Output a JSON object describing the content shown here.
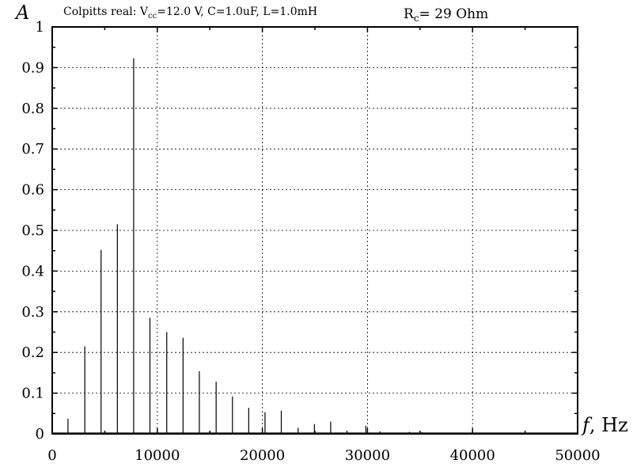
{
  "chart_data": {
    "type": "line",
    "title": {
      "prefix": "Colpitts real: V",
      "sub": "cc",
      "suffix": "=12.0 V, C=1.0uF, L=1.0mH"
    },
    "rc_label": {
      "prefix": "R",
      "sub": "c",
      "suffix": "=    29 Ohm"
    },
    "ylabel": "A",
    "xlabel": {
      "var": "f",
      "unit": ", Hz"
    },
    "xlim": [
      0,
      50000
    ],
    "ylim": [
      0,
      1
    ],
    "grid": true,
    "x_ticks": [
      0,
      10000,
      20000,
      30000,
      40000,
      50000
    ],
    "y_ticks": [
      0,
      0.1,
      0.2,
      0.3,
      0.4,
      0.5,
      0.6,
      0.7,
      0.8,
      0.9,
      1
    ],
    "y_tick_labels": [
      "0",
      "0.1",
      "0.2",
      "0.3",
      "0.4",
      "0.5",
      "0.6",
      "0.7",
      "0.8",
      "0.9",
      "1"
    ],
    "x_tick_labels": [
      "0",
      "10000",
      "20000",
      "30000",
      "40000",
      "50000"
    ],
    "series": [
      {
        "values": [
          {
            "x": 1500,
            "y": 0.037
          },
          {
            "x": 3100,
            "y": 0.215
          },
          {
            "x": 4650,
            "y": 0.452
          },
          {
            "x": 6200,
            "y": 0.515
          },
          {
            "x": 7750,
            "y": 0.923
          },
          {
            "x": 9300,
            "y": 0.285
          },
          {
            "x": 10900,
            "y": 0.25
          },
          {
            "x": 12450,
            "y": 0.236
          },
          {
            "x": 14000,
            "y": 0.154
          },
          {
            "x": 15600,
            "y": 0.128
          },
          {
            "x": 17150,
            "y": 0.092
          },
          {
            "x": 18700,
            "y": 0.064
          },
          {
            "x": 20250,
            "y": 0.053
          },
          {
            "x": 21800,
            "y": 0.057
          },
          {
            "x": 23400,
            "y": 0.015
          },
          {
            "x": 24950,
            "y": 0.024
          },
          {
            "x": 26500,
            "y": 0.03
          },
          {
            "x": 28050,
            "y": 0.008
          },
          {
            "x": 29850,
            "y": 0.02
          },
          {
            "x": 31200,
            "y": 0.006
          },
          {
            "x": 34000,
            "y": 0.005
          },
          {
            "x": 35200,
            "y": 0.004
          },
          {
            "x": 39000,
            "y": 0.003
          }
        ]
      }
    ]
  }
}
